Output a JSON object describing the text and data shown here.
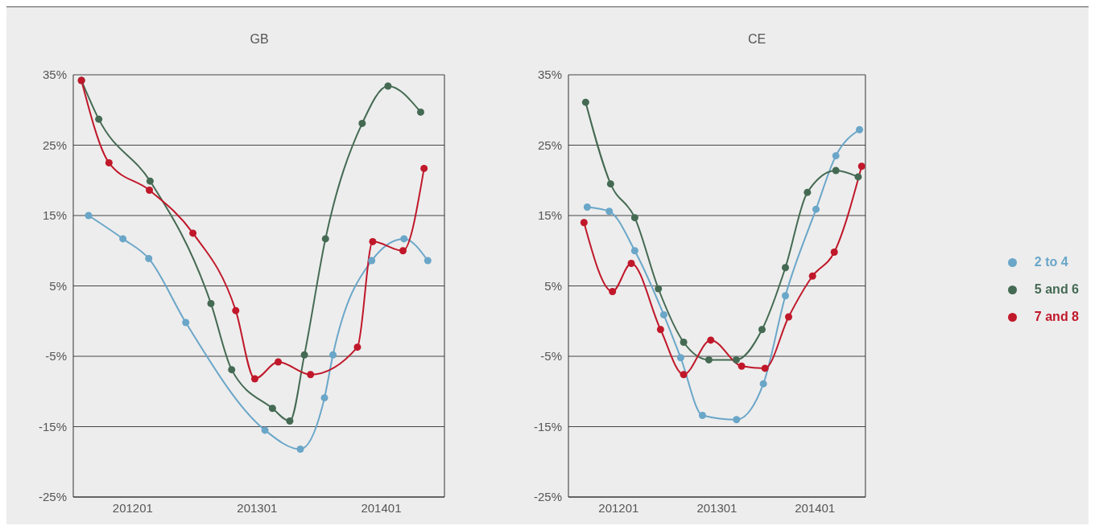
{
  "chart_data": [
    {
      "type": "line",
      "title": "GB",
      "xlim": [
        "2011-07-10",
        "2014-07-06"
      ],
      "xticks": [
        {
          "value": "2012-01-01",
          "label": "201201"
        },
        {
          "value": "2013-01-01",
          "label": "201301"
        },
        {
          "value": "2014-01-01",
          "label": "201401"
        }
      ],
      "ylim": [
        -25,
        35
      ],
      "yticks": [
        {
          "value": 35,
          "label": "35%"
        },
        {
          "value": 25,
          "label": "25%"
        },
        {
          "value": 15,
          "label": "15%"
        },
        {
          "value": 5,
          "label": "5%"
        },
        {
          "value": -5,
          "label": "-5%"
        },
        {
          "value": -15,
          "label": "-15%"
        },
        {
          "value": -25,
          "label": "-25%"
        }
      ],
      "grid": "y",
      "legend": false,
      "marker": "circle",
      "line_style": "solid",
      "series": [
        {
          "color": "#6aa6c8",
          "x": [
            "2011-08-24",
            "2011-12-03",
            "2012-02-17",
            "2012-06-05",
            "2013-01-24",
            "2013-05-08",
            "2013-07-18",
            "2013-08-12",
            "2013-12-04",
            "2014-03-09",
            "2014-05-18"
          ],
          "values": [
            15.0,
            11.7,
            8.9,
            -0.2,
            -15.5,
            -18.2,
            -10.9,
            -4.8,
            8.6,
            11.7,
            8.6
          ]
        },
        {
          "color": "#456a53",
          "x": [
            "2011-08-03",
            "2011-09-23",
            "2012-02-21",
            "2012-08-18",
            "2012-10-18",
            "2013-02-15",
            "2013-04-07",
            "2013-05-20",
            "2013-07-21",
            "2013-11-06",
            "2014-01-21",
            "2014-04-27"
          ],
          "values": [
            34.2,
            28.7,
            19.9,
            2.5,
            -6.9,
            -12.4,
            -14.2,
            -4.8,
            11.7,
            28.1,
            33.4,
            29.7
          ]
        },
        {
          "color": "#c0182a",
          "x": [
            "2011-08-03",
            "2011-10-23",
            "2012-02-19",
            "2012-06-26",
            "2012-10-30",
            "2012-12-25",
            "2013-03-04",
            "2013-06-07",
            "2013-10-23",
            "2013-12-07",
            "2014-03-06",
            "2014-05-07"
          ],
          "values": [
            34.2,
            22.5,
            18.6,
            12.5,
            1.5,
            -8.2,
            -5.8,
            -7.6,
            -3.7,
            11.3,
            10.0,
            21.7
          ]
        }
      ]
    },
    {
      "type": "line",
      "title": "CE",
      "xlim": [
        "2011-06-28",
        "2014-07-08"
      ],
      "xticks": [
        {
          "value": "2012-01-01",
          "label": "201201"
        },
        {
          "value": "2013-01-01",
          "label": "201301"
        },
        {
          "value": "2014-01-01",
          "label": "201401"
        }
      ],
      "ylim": [
        -25,
        35
      ],
      "yticks": [
        {
          "value": 35,
          "label": "35%"
        },
        {
          "value": 25,
          "label": "25%"
        },
        {
          "value": 15,
          "label": "15%"
        },
        {
          "value": 5,
          "label": "5%"
        },
        {
          "value": -5,
          "label": "-5%"
        },
        {
          "value": -15,
          "label": "-15%"
        },
        {
          "value": -25,
          "label": "-25%"
        }
      ],
      "grid": "y",
      "legend": "right",
      "marker": "circle",
      "line_style": "solid",
      "series": [
        {
          "name": "2 to 4",
          "color": "#6aa6c8",
          "x": [
            "2011-09-06",
            "2011-11-27",
            "2012-03-01",
            "2012-06-17",
            "2012-08-19",
            "2012-11-08",
            "2013-03-15",
            "2013-06-23",
            "2013-09-13",
            "2014-01-05",
            "2014-03-20",
            "2014-06-16"
          ],
          "values": [
            16.2,
            15.6,
            10.0,
            0.9,
            -5.2,
            -13.4,
            -14.0,
            -8.9,
            3.6,
            15.9,
            23.5,
            27.2
          ]
        },
        {
          "name": "5 and 6",
          "color": "#456a53",
          "x": [
            "2011-08-31",
            "2011-12-02",
            "2012-03-01",
            "2012-05-28",
            "2012-08-30",
            "2012-12-02",
            "2013-03-14",
            "2013-06-18",
            "2013-09-13",
            "2013-12-04",
            "2014-03-20",
            "2014-06-11"
          ],
          "values": [
            31.1,
            19.5,
            14.7,
            4.6,
            -3.0,
            -5.5,
            -5.5,
            -1.2,
            7.6,
            18.3,
            21.4,
            20.5
          ]
        },
        {
          "name": "7 and 8",
          "color": "#c0182a",
          "x": [
            "2011-08-25",
            "2011-12-09",
            "2012-02-17",
            "2012-06-05",
            "2012-08-30",
            "2012-12-09",
            "2013-04-03",
            "2013-06-29",
            "2013-09-25",
            "2013-12-23",
            "2014-03-14",
            "2014-06-24"
          ],
          "values": [
            14.0,
            4.2,
            8.2,
            -1.2,
            -7.6,
            -2.7,
            -6.4,
            -6.7,
            0.6,
            6.4,
            9.8,
            22.0
          ]
        }
      ]
    }
  ]
}
